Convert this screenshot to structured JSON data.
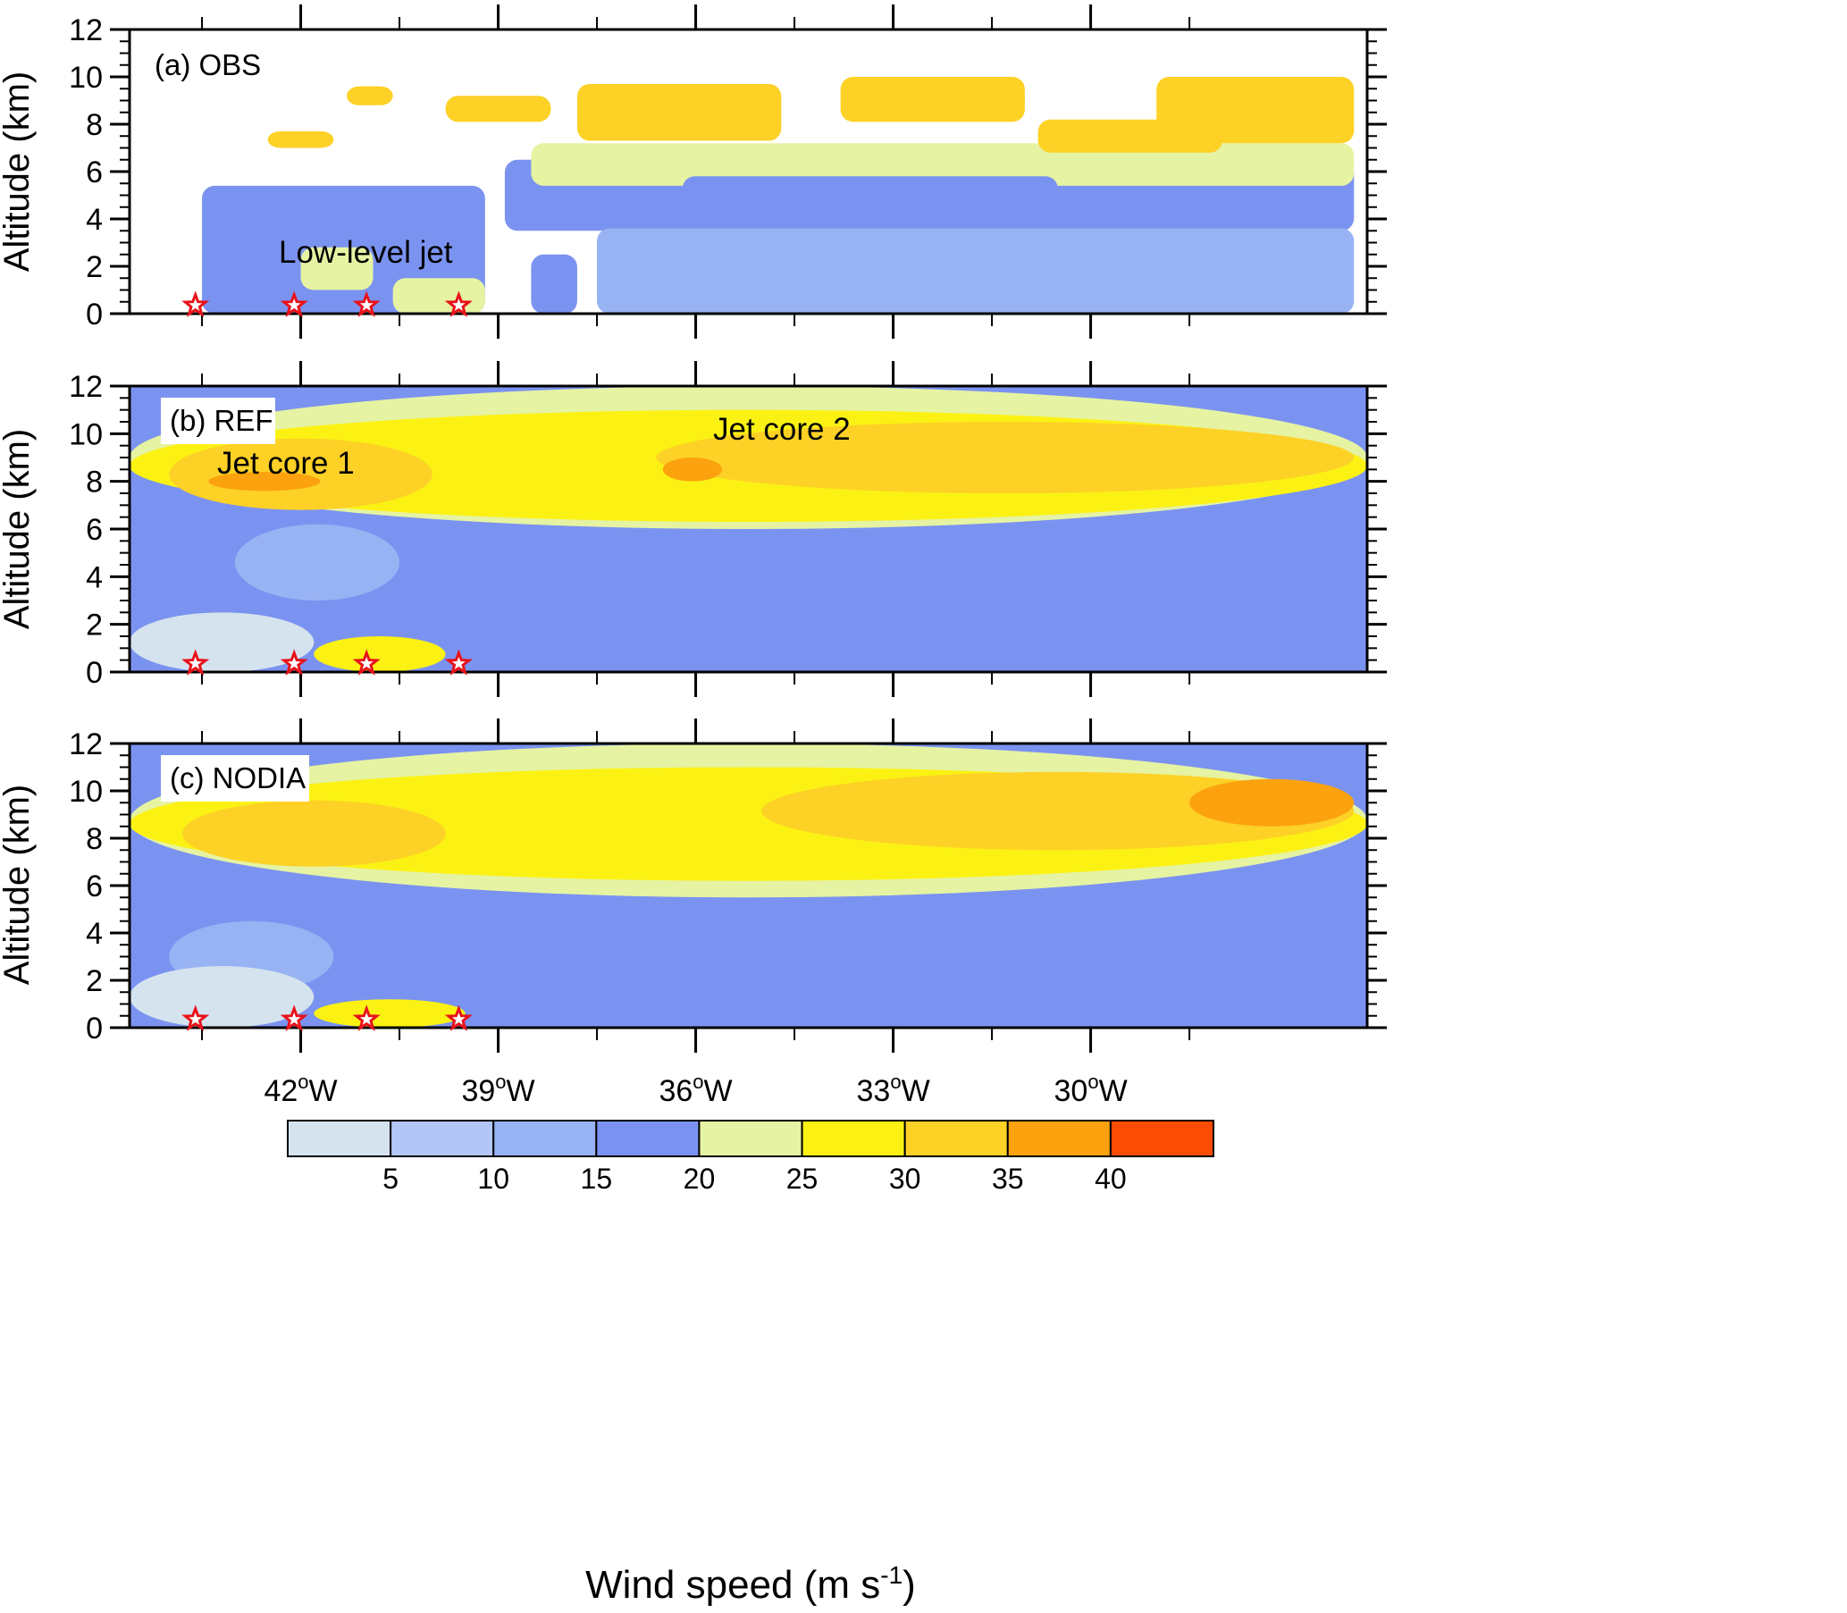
{
  "chart_data": {
    "type": "heatmap",
    "colorbar": {
      "title": "Wind speed (m s",
      "title_superscript": "-1",
      "title_close": ")",
      "tick_labels": [
        "5",
        "10",
        "15",
        "20",
        "25",
        "30",
        "35",
        "40"
      ],
      "colors": [
        "#d5e3ee",
        "#b3c6f5",
        "#98b3f4",
        "#7b93f0",
        "#e6f3a3",
        "#fbf214",
        "#fdd126",
        "#fca20e",
        "#fc4b05"
      ],
      "bounds": [
        0,
        5,
        10,
        15,
        20,
        25,
        30,
        35,
        40,
        45
      ]
    },
    "x_axis": {
      "range_lon": [
        -44.6,
        -25.8
      ],
      "major_ticks": [
        -42,
        -39,
        -36,
        -33,
        -30
      ],
      "major_tick_labels": [
        "42",
        "39",
        "36",
        "33",
        "30"
      ],
      "degree_symbol": "o",
      "hemisphere": "W"
    },
    "panels": [
      {
        "id": "a",
        "label": "(a) OBS",
        "ylabel": "Altitude (km)",
        "ylim": [
          0,
          12
        ],
        "y_ticks": [
          "0",
          "2",
          "4",
          "6",
          "8",
          "10",
          "12"
        ],
        "annotations": [
          {
            "text": "Low-level jet",
            "lon": -41.3,
            "alt": 2.6
          }
        ],
        "stations_lon": [
          -43.6,
          -42.1,
          -41.0,
          -39.6
        ],
        "blobs": [
          {
            "lon": [
              -43.5,
              -39.2
            ],
            "alt": [
              0,
              5.4
            ],
            "value": 17
          },
          {
            "lon": [
              -42.0,
              -40.9
            ],
            "alt": [
              1.0,
              2.8
            ],
            "value": 22
          },
          {
            "lon": [
              -40.6,
              -39.2
            ],
            "alt": [
              0,
              1.5
            ],
            "value": 23
          },
          {
            "lon": [
              -38.5,
              -37.8
            ],
            "alt": [
              0,
              2.5
            ],
            "value": 16
          },
          {
            "lon": [
              -38.9,
              -26.0
            ],
            "alt": [
              3.5,
              6.5
            ],
            "value": 17
          },
          {
            "lon": [
              -37.5,
              -26.0
            ],
            "alt": [
              0,
              3.6
            ],
            "value": 14
          },
          {
            "lon": [
              -38.5,
              -26.0
            ],
            "alt": [
              5.4,
              7.2
            ],
            "value": 22
          },
          {
            "lon": [
              -36.2,
              -30.5
            ],
            "alt": [
              4.8,
              5.8
            ],
            "value": 19
          },
          {
            "lon": [
              -42.5,
              -41.5
            ],
            "alt": [
              7.0,
              7.7
            ],
            "value": 31
          },
          {
            "lon": [
              -41.3,
              -40.6
            ],
            "alt": [
              8.8,
              9.6
            ],
            "value": 31
          },
          {
            "lon": [
              -39.8,
              -38.2
            ],
            "alt": [
              8.1,
              9.2
            ],
            "value": 31
          },
          {
            "lon": [
              -37.8,
              -34.7
            ],
            "alt": [
              7.3,
              9.7
            ],
            "value": 32
          },
          {
            "lon": [
              -33.8,
              -31.0
            ],
            "alt": [
              8.1,
              10.0
            ],
            "value": 31
          },
          {
            "lon": [
              -29.0,
              -26.0
            ],
            "alt": [
              7.2,
              10.0
            ],
            "value": 32
          },
          {
            "lon": [
              -30.8,
              -28.0
            ],
            "alt": [
              6.8,
              8.2
            ],
            "value": 31
          }
        ]
      },
      {
        "id": "b",
        "label": "(b) REF",
        "ylabel": "Altitude (km)",
        "ylim": [
          0,
          12
        ],
        "y_ticks": [
          "0",
          "2",
          "4",
          "6",
          "8",
          "10",
          "12"
        ],
        "annotations": [
          {
            "text": "Jet core 1",
            "lon": -42.5,
            "alt": 8.2
          },
          {
            "text": "Jet core 2",
            "lon": -35.9,
            "alt": 9.9
          }
        ],
        "stations_lon": [
          -43.6,
          -42.1,
          -41.0,
          -39.6
        ],
        "background_value": 17,
        "bands": [
          {
            "alt": [
              6.0,
              12.0
            ],
            "value": 22
          },
          {
            "alt": [
              6.3,
              11.0
            ],
            "value": 27
          },
          {
            "lon": [
              -44.0,
              -40.0
            ],
            "alt": [
              6.8,
              9.8
            ],
            "value": 32
          },
          {
            "lon": [
              -36.6,
              -26.0
            ],
            "alt": [
              7.5,
              10.5
            ],
            "value": 32
          },
          {
            "lon": [
              -43.4,
              -41.7
            ],
            "alt": [
              7.6,
              8.4
            ],
            "value": 37
          },
          {
            "lon": [
              -36.5,
              -35.6
            ],
            "alt": [
              8.0,
              9.0
            ],
            "value": 37
          },
          {
            "lon": [
              -43.0,
              -40.5
            ],
            "alt": [
              3.0,
              6.2
            ],
            "value": 12
          },
          {
            "lon": [
              -41.8,
              -39.8
            ],
            "alt": [
              0,
              1.5
            ],
            "value": 26
          },
          {
            "lon": [
              -44.6,
              -41.8
            ],
            "alt": [
              0,
              2.5
            ],
            "value": 2
          }
        ]
      },
      {
        "id": "c",
        "label": "(c) NODIA",
        "ylabel": "Altitude (km)",
        "ylim": [
          0,
          12
        ],
        "y_ticks": [
          "0",
          "2",
          "4",
          "6",
          "8",
          "10",
          "12"
        ],
        "annotations": [],
        "stations_lon": [
          -43.6,
          -42.1,
          -41.0,
          -39.6
        ],
        "background_value": 17,
        "bands": [
          {
            "alt": [
              5.5,
              12.0
            ],
            "value": 22
          },
          {
            "alt": [
              6.2,
              11.0
            ],
            "value": 27
          },
          {
            "lon": [
              -43.8,
              -39.8
            ],
            "alt": [
              6.8,
              9.6
            ],
            "value": 32
          },
          {
            "lon": [
              -35.0,
              -26.0
            ],
            "alt": [
              7.5,
              10.8
            ],
            "value": 32
          },
          {
            "lon": [
              -28.5,
              -26.0
            ],
            "alt": [
              8.5,
              10.5
            ],
            "value": 37
          },
          {
            "lon": [
              -44.0,
              -41.5
            ],
            "alt": [
              1.5,
              4.5
            ],
            "value": 12
          },
          {
            "lon": [
              -41.8,
              -39.5
            ],
            "alt": [
              0,
              1.2
            ],
            "value": 27
          },
          {
            "lon": [
              -44.6,
              -41.8
            ],
            "alt": [
              0,
              2.6
            ],
            "value": 2
          }
        ]
      }
    ]
  }
}
